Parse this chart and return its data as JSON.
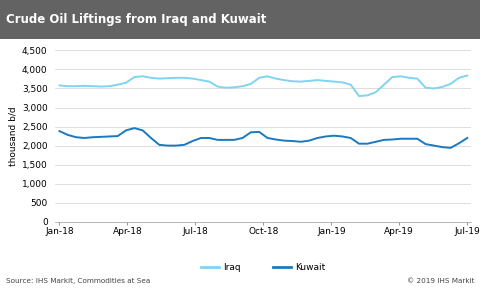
{
  "title": "Crude Oil Liftings from Iraq and Kuwait",
  "title_bg_color": "#636363",
  "title_text_color": "#ffffff",
  "ylabel": "thousand b/d",
  "ylim": [
    0,
    4500
  ],
  "yticks": [
    0,
    500,
    1000,
    1500,
    2000,
    2500,
    3000,
    3500,
    4000,
    4500
  ],
  "xtick_labels": [
    "Jan-18",
    "Apr-18",
    "Jul-18",
    "Oct-18",
    "Jan-19",
    "Apr-19",
    "Jul-19"
  ],
  "source_text": "Source: IHS Markit, Commodities at Sea",
  "copyright_text": "© 2019 IHS Markit",
  "iraq_color": "#7fd4f0",
  "kuwait_color": "#1a7abf",
  "background_color": "#ffffff",
  "plot_bg_color": "#ffffff",
  "grid_color": "#d0d0d0",
  "iraq_values": [
    3580,
    3560,
    3560,
    3570,
    3560,
    3550,
    3560,
    3600,
    3650,
    3800,
    3820,
    3780,
    3760,
    3770,
    3780,
    3780,
    3760,
    3720,
    3680,
    3550,
    3520,
    3530,
    3560,
    3620,
    3780,
    3820,
    3760,
    3720,
    3690,
    3680,
    3700,
    3720,
    3700,
    3680,
    3660,
    3600,
    3300,
    3320,
    3400,
    3600,
    3800,
    3820,
    3780,
    3760,
    3520,
    3500,
    3540,
    3620,
    3780,
    3840
  ],
  "kuwait_values": [
    2380,
    2280,
    2220,
    2200,
    2220,
    2230,
    2240,
    2250,
    2400,
    2460,
    2400,
    2200,
    2020,
    2000,
    2000,
    2020,
    2120,
    2200,
    2200,
    2150,
    2150,
    2150,
    2200,
    2350,
    2360,
    2200,
    2160,
    2130,
    2120,
    2100,
    2130,
    2200,
    2240,
    2260,
    2240,
    2200,
    2050,
    2050,
    2100,
    2150,
    2160,
    2180,
    2180,
    2180,
    2040,
    2000,
    1960,
    1940,
    2060,
    2200
  ],
  "n_points": 50,
  "figsize": [
    4.81,
    2.88
  ],
  "dpi": 100
}
